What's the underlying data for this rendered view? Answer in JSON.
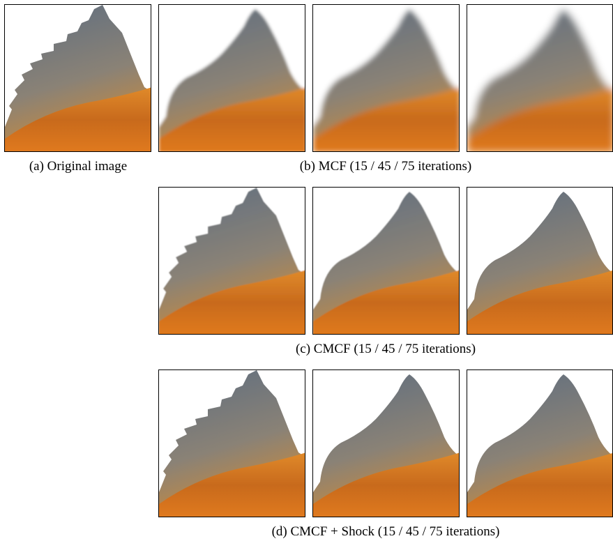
{
  "figure": {
    "captions": [
      "(a) Original image",
      "(b) MCF (15 / 45 / 75 iterations)",
      "(c) CMCF (15 / 45 / 75 iterations)",
      "(d) CMCF + Shock (15 / 45 / 75 iterations)"
    ]
  }
}
